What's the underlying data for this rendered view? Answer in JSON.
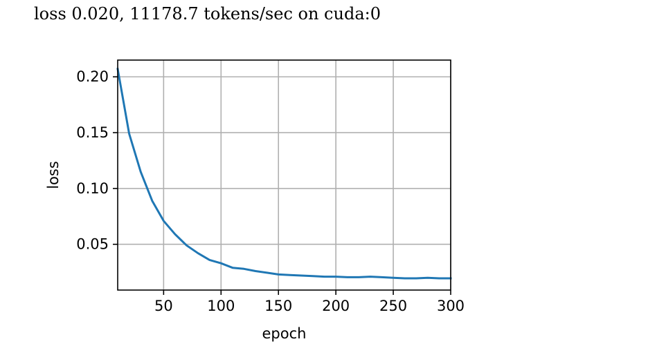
{
  "status": {
    "text": "loss 0.020, 11178.7 tokens/sec on cuda:0"
  },
  "chart_data": {
    "type": "line",
    "title": "",
    "xlabel": "epoch",
    "ylabel": "loss",
    "xlim": [
      10,
      300
    ],
    "ylim": [
      0.009,
      0.215
    ],
    "xticks": [
      50,
      100,
      150,
      200,
      250,
      300
    ],
    "xtick_labels": [
      "50",
      "100",
      "150",
      "200",
      "250",
      "300"
    ],
    "yticks": [
      0.05,
      0.1,
      0.15,
      0.2
    ],
    "ytick_labels": [
      "0.05",
      "0.10",
      "0.15",
      "0.20"
    ],
    "grid": true,
    "colors": {
      "line": "#1f77b4",
      "grid": "#b0b0b0",
      "axis": "#000000"
    },
    "series": [
      {
        "x": [
          10,
          20,
          30,
          40,
          50,
          60,
          70,
          80,
          90,
          100,
          110,
          120,
          130,
          140,
          150,
          160,
          170,
          180,
          190,
          200,
          210,
          220,
          230,
          240,
          250,
          260,
          270,
          280,
          290,
          300
        ],
        "values": [
          0.207,
          0.149,
          0.115,
          0.089,
          0.071,
          0.059,
          0.049,
          0.042,
          0.036,
          0.033,
          0.029,
          0.028,
          0.026,
          0.0245,
          0.023,
          0.0225,
          0.022,
          0.0215,
          0.021,
          0.021,
          0.0205,
          0.0205,
          0.021,
          0.0205,
          0.02,
          0.0195,
          0.0195,
          0.02,
          0.0195,
          0.0195
        ]
      }
    ]
  }
}
